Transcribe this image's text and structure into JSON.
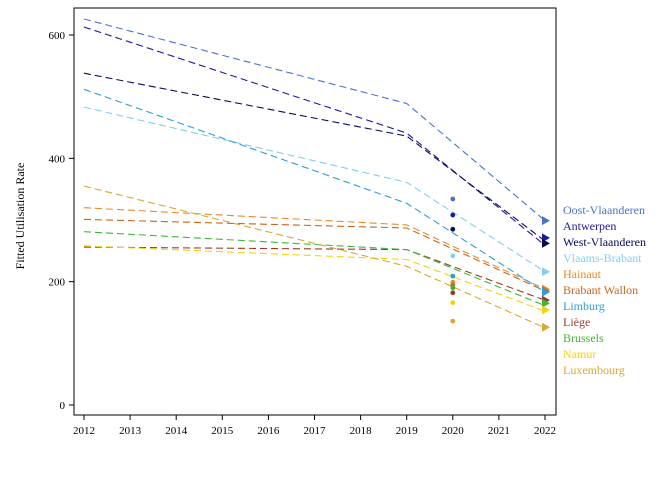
{
  "chart_data": {
    "type": "line",
    "title": "",
    "xlabel": "",
    "ylabel": "Fitted Utilisation Rate",
    "xlim": [
      2012,
      2022
    ],
    "ylim": [
      0,
      650
    ],
    "x_ticks": [
      "2012",
      "2013",
      "2014",
      "2015",
      "2016",
      "2017",
      "2018",
      "2019",
      "2020",
      "2021",
      "2022"
    ],
    "y_ticks": [
      "0",
      "200",
      "400",
      "600"
    ],
    "grid": false,
    "legend": "right",
    "series": [
      {
        "name": "Oost-Vlaanderen",
        "color": "#4a72c9",
        "line": [
          [
            2012,
            626
          ],
          [
            2019,
            489
          ],
          [
            2022,
            299
          ]
        ],
        "point_2020": 334,
        "point_2022": 299,
        "marker": "triangle"
      },
      {
        "name": "Antwerpen",
        "color": "#1a1a9c",
        "line": [
          [
            2012,
            613
          ],
          [
            2019,
            441
          ],
          [
            2022,
            259
          ]
        ],
        "point_2020": 308,
        "point_2022": 271,
        "marker": "triangle"
      },
      {
        "name": "West-Vlaanderen",
        "color": "#0a0a5a",
        "line": [
          [
            2012,
            538
          ],
          [
            2019,
            436
          ],
          [
            2022,
            266
          ]
        ],
        "point_2020": 285,
        "point_2022": 262,
        "marker": "triangle"
      },
      {
        "name": "Vlaams-Brabant",
        "color": "#87ceeb",
        "line": [
          [
            2012,
            483
          ],
          [
            2019,
            361
          ],
          [
            2022,
            216
          ]
        ],
        "point_2020": 242,
        "point_2022": 216,
        "marker": "triangle"
      },
      {
        "name": "Hainaut",
        "color": "#e8892d",
        "line": [
          [
            2012,
            320
          ],
          [
            2019,
            292
          ],
          [
            2022,
            188
          ]
        ],
        "point_2020": 199,
        "point_2022": 188,
        "marker": "triangle"
      },
      {
        "name": "Brabant Wallon",
        "color": "#c8651b",
        "line": [
          [
            2012,
            301
          ],
          [
            2019,
            287
          ],
          [
            2022,
            185
          ]
        ],
        "point_2020": 194,
        "point_2022": 185,
        "marker": "triangle"
      },
      {
        "name": "Limburg",
        "color": "#2c9ed8",
        "line": [
          [
            2012,
            512
          ],
          [
            2019,
            327
          ],
          [
            2022,
            183
          ]
        ],
        "point_2020": 209,
        "point_2022": 183,
        "marker": "triangle"
      },
      {
        "name": "Liège",
        "color": "#9c3a2a",
        "line": [
          [
            2012,
            256
          ],
          [
            2019,
            252
          ],
          [
            2022,
            170
          ]
        ],
        "point_2020": 182,
        "point_2022": 170,
        "marker": "triangle"
      },
      {
        "name": "Brussels",
        "color": "#3cb832",
        "line": [
          [
            2012,
            281
          ],
          [
            2019,
            252
          ],
          [
            2022,
            161
          ]
        ],
        "point_2020": 190,
        "point_2022": 165,
        "marker": "triangle"
      },
      {
        "name": "Namur",
        "color": "#f2d40c",
        "line": [
          [
            2012,
            258
          ],
          [
            2019,
            236
          ],
          [
            2022,
            152
          ]
        ],
        "point_2020": 166,
        "point_2022": 154,
        "marker": "triangle"
      },
      {
        "name": "Luxembourg",
        "color": "#dba733",
        "line": [
          [
            2012,
            355
          ],
          [
            2019,
            225
          ],
          [
            2022,
            125
          ]
        ],
        "point_2020": 136,
        "point_2022": 126,
        "marker": "triangle"
      }
    ]
  }
}
